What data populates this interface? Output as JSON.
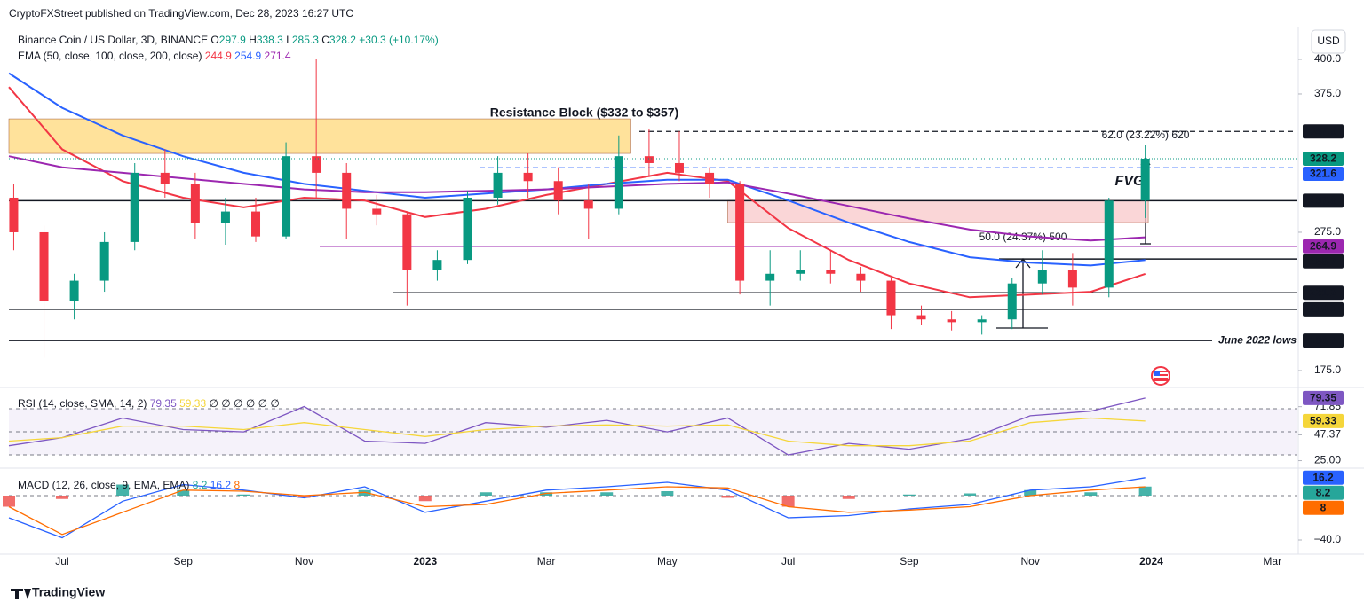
{
  "header": {
    "published": "CryptoFXStreet published on TradingView.com, Dec 28, 2023 16:27 UTC",
    "currency_button": "USD",
    "footer": "TradingView"
  },
  "chart_data": [
    {
      "type": "candlestick",
      "title": "Binance Coin / US Dollar, 3D, BINANCE",
      "ohlc_prefixes": [
        "O",
        "H",
        "L",
        "C"
      ],
      "change": "+30.3 (+10.17%)",
      "x": [
        -0.8,
        -0.3,
        0.2,
        0.7,
        1.2,
        1.7,
        2.2,
        2.7,
        3.2,
        3.7,
        4.2,
        4.7,
        5.2,
        5.7,
        6.2,
        6.7,
        7.2,
        7.7,
        8.2,
        8.7,
        9.2,
        9.7,
        10.2,
        10.7,
        11.2,
        11.7,
        12.2,
        12.7,
        13.2,
        13.7,
        14.2,
        14.7,
        15.2,
        15.7,
        16.2,
        16.7,
        17.3,
        17.9
      ],
      "open": [
        300,
        275,
        225,
        240,
        268,
        318,
        310,
        282,
        290,
        272,
        330,
        318,
        292,
        288,
        248,
        255,
        300,
        318,
        312,
        298,
        292,
        330,
        325,
        318,
        310,
        240,
        245,
        248,
        245,
        240,
        215,
        212,
        210,
        212,
        238,
        248,
        235,
        297.9
      ],
      "high": [
        310,
        280,
        245,
        275,
        325,
        335,
        318,
        300,
        300,
        340,
        400,
        325,
        302,
        290,
        262,
        305,
        330,
        332,
        322,
        310,
        345,
        350,
        348,
        322,
        312,
        262,
        262,
        262,
        250,
        242,
        222,
        218,
        215,
        242,
        262,
        260,
        300,
        338.3
      ],
      "low": [
        262,
        184,
        212,
        232,
        262,
        300,
        270,
        266,
        268,
        270,
        300,
        270,
        280,
        222,
        240,
        252,
        295,
        300,
        288,
        270,
        288,
        315,
        312,
        300,
        230,
        222,
        240,
        238,
        232,
        205,
        208,
        204,
        201,
        205,
        230,
        222,
        228,
        285.3
      ],
      "close": [
        275,
        225,
        240,
        268,
        318,
        310,
        282,
        290,
        272,
        330,
        318,
        292,
        288,
        248,
        255,
        300,
        318,
        312,
        298,
        292,
        330,
        325,
        318,
        310,
        240,
        245,
        248,
        245,
        240,
        215,
        212,
        210,
        212,
        238,
        248,
        235,
        297.9,
        328.2
      ],
      "up_color": "#089981",
      "down_color": "#f23645",
      "xlim": [
        -0.88,
        20.4
      ],
      "xticks": [
        {
          "value": 0,
          "label": "Jul"
        },
        {
          "value": 2,
          "label": "Sep"
        },
        {
          "value": 4,
          "label": "Nov"
        },
        {
          "value": 6,
          "label": "2023"
        },
        {
          "value": 8,
          "label": "Mar"
        },
        {
          "value": 10,
          "label": "May"
        },
        {
          "value": 12,
          "label": "Jul"
        },
        {
          "value": 14,
          "label": "Sep"
        },
        {
          "value": 16,
          "label": "Nov"
        },
        {
          "value": 18,
          "label": "2024"
        },
        {
          "value": 20,
          "label": "Mar"
        }
      ],
      "ylim": [
        162.8,
        420.5
      ],
      "yticks": [
        {
          "value": 400,
          "label": "400.0"
        },
        {
          "value": 375,
          "label": "375.0"
        },
        {
          "value": 275,
          "label": "275.0"
        },
        {
          "value": 175,
          "label": "175.0"
        }
      ],
      "overlays": {
        "title": "EMA (50, close, 100, close, 200, close)",
        "x": [
          -0.88,
          0,
          1,
          2,
          3,
          4,
          5,
          6,
          7,
          8,
          9,
          10,
          11,
          12,
          13,
          14,
          15,
          16,
          17,
          17.9
        ],
        "series": [
          {
            "color": "#f23645",
            "values": [
              380,
              335,
              312,
              300,
              293,
              300,
              298,
              286,
              292,
              302,
              310,
              318,
              312,
              278,
              255,
              238,
              228,
              230,
              232,
              244.9
            ]
          },
          {
            "color": "#2962ff",
            "values": [
              390,
              365,
              345,
              330,
              318,
              310,
              305,
              300,
              303,
              306,
              310,
              313,
              313,
              298,
              282,
              268,
              257,
              253,
              251,
              254.9
            ]
          },
          {
            "color": "#9c27b0",
            "values": [
              330,
              322,
              318,
              314,
              310,
              306,
              304,
              304,
              305,
              306,
              308,
              310,
              311,
              303,
              294,
              285,
              277,
              272,
              269,
              271.4
            ]
          }
        ]
      },
      "levels": [
        {
          "value": 347.9,
          "color": "#131722",
          "style": "dashed"
        },
        {
          "value": 321.6,
          "color": "#2962ff",
          "style": "dashed"
        },
        {
          "value": 297.8,
          "color": "#131722",
          "style": "solid"
        },
        {
          "value": 264.9,
          "color": "#9c27b0",
          "style": "solid"
        },
        {
          "value": 255.7,
          "color": "#131722",
          "style": "solid"
        },
        {
          "value": 231.2,
          "color": "#131722",
          "style": "solid"
        },
        {
          "value": 219.3,
          "color": "#131722",
          "style": "solid"
        },
        {
          "value": 196.7,
          "color": "#131722",
          "style": "solid"
        }
      ],
      "zones": [
        {
          "low": 332,
          "high": 357,
          "from": -0.88,
          "to": 9.4,
          "color": "#ffd670",
          "label": "Resistance Block ($332 to $357)"
        },
        {
          "low": 282,
          "high": 298,
          "from": 11.0,
          "to": 17.95,
          "color": "#f8c4c6",
          "label": "FVG"
        }
      ],
      "annotations": [
        "62.0 (23.22%) 620",
        "50.0 (24.37%) 500",
        "June 2022 lows"
      ]
    },
    {
      "type": "rsi",
      "title": "RSI (14, close, SMA, 14, 2)",
      "extra": "∅ ∅ ∅ ∅ ∅ ∅",
      "x": [
        -0.88,
        0,
        1,
        2,
        3,
        4,
        5,
        6,
        7,
        8,
        9,
        10,
        11,
        12,
        13,
        14,
        15,
        16,
        17,
        17.9
      ],
      "series": [
        {
          "color": "#7e57c2",
          "values": [
            38,
            45,
            62,
            52,
            50,
            72,
            42,
            40,
            58,
            54,
            60,
            50,
            62,
            30,
            40,
            35,
            44,
            64,
            68,
            79.35
          ]
        },
        {
          "color": "#f5d63a",
          "values": [
            42,
            45,
            55,
            55,
            52,
            58,
            52,
            46,
            52,
            55,
            56,
            55,
            56,
            42,
            38,
            38,
            42,
            58,
            62,
            59.33
          ]
        }
      ],
      "levels": [
        70,
        50,
        30
      ],
      "ylim": [
        18.5,
        86.2
      ],
      "yticks": [
        71.85,
        47.37,
        {
          "value": 25,
          "label": "25.00"
        }
      ]
    },
    {
      "type": "macd",
      "title": "MACD (12, 26, close, 9, EMA, EMA)",
      "x": [
        -0.88,
        0,
        1,
        2,
        3,
        4,
        5,
        6,
        7,
        8,
        9,
        10,
        11,
        12,
        13,
        14,
        15,
        16,
        17,
        17.9
      ],
      "histogram": {
        "up_color": "#26a69a",
        "down_color": "#ef5350",
        "values": [
          -10,
          -3,
          10,
          5,
          1,
          -2,
          5,
          -5,
          3,
          3,
          3,
          4,
          -2,
          -10,
          -3,
          1,
          2,
          5,
          3,
          8.2
        ]
      },
      "series": [
        {
          "color": "#2962ff",
          "values": [
            -20,
            -38,
            -5,
            10,
            5,
            -2,
            8,
            -15,
            -5,
            5,
            8,
            12,
            5,
            -20,
            -18,
            -12,
            -8,
            5,
            8,
            16.2
          ]
        },
        {
          "color": "#ff6d00",
          "values": [
            -10,
            -35,
            -15,
            5,
            4,
            0,
            3,
            -10,
            -8,
            2,
            5,
            8,
            7,
            -10,
            -15,
            -13,
            -10,
            0,
            5,
            8.0
          ]
        }
      ],
      "levels": [
        0
      ],
      "ylim": [
        -52.8,
        23.2
      ],
      "yticks": [
        {
          "value": -40,
          "label": "−40.0"
        }
      ]
    }
  ]
}
